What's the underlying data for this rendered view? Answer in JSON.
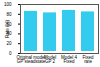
{
  "chart_data": {
    "type": "bar",
    "categories": [
      "Original model\nGP steadstate",
      "Model\nGP 2",
      "Model 4\nFixed",
      "Fixed\nrate"
    ],
    "values": [
      90,
      87,
      92,
      89
    ],
    "color": "#33ccee",
    "ylabel": "Rate (%)",
    "ylim": [
      0,
      100
    ],
    "yticks": [
      0,
      20,
      40,
      60,
      80,
      100
    ],
    "grid": false
  }
}
